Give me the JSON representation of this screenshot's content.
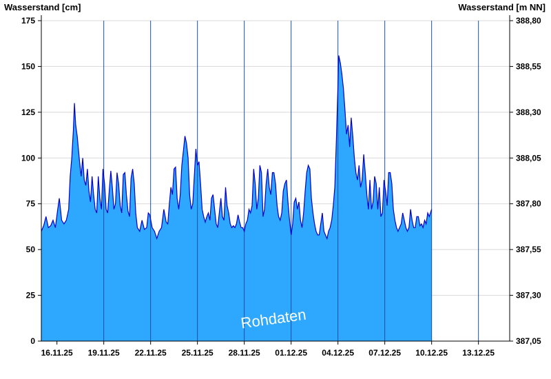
{
  "chart_data": {
    "type": "area",
    "title": "",
    "ylabel_left": "Wasserstand [cm]",
    "ylabel_right": "Wasserstand [m NN]",
    "watermark": "Rohdaten",
    "x_start": "15.11.25",
    "x_end": "15.12.25",
    "ylim_left": [
      0,
      175
    ],
    "ylim_right": [
      387.05,
      388.8
    ],
    "yticks_left": [
      "0",
      "25",
      "50",
      "75",
      "100",
      "125",
      "150",
      "175"
    ],
    "yticks_right": [
      "387,05",
      "387,30",
      "387,55",
      "387,80",
      "388,05",
      "388,30",
      "388,55",
      "388,80"
    ],
    "xticks": [
      "16.11.25",
      "19.11.25",
      "22.11.25",
      "25.11.25",
      "28.11.25",
      "01.12.25",
      "04.12.25",
      "07.12.25",
      "10.12.25",
      "13.12.25"
    ],
    "grid": "horizontal",
    "fill_color": "#2ea8ff",
    "line_color": "#0000cc",
    "series": [
      {
        "points": [
          [
            0.0,
            60
          ],
          [
            0.15,
            63
          ],
          [
            0.3,
            68
          ],
          [
            0.45,
            62
          ],
          [
            0.6,
            63
          ],
          [
            0.75,
            66
          ],
          [
            0.9,
            62
          ],
          [
            1.05,
            72
          ],
          [
            1.15,
            78
          ],
          [
            1.3,
            66
          ],
          [
            1.45,
            64
          ],
          [
            1.6,
            66
          ],
          [
            1.75,
            72
          ],
          [
            1.85,
            90
          ],
          [
            1.95,
            100
          ],
          [
            2.05,
            115
          ],
          [
            2.12,
            130
          ],
          [
            2.2,
            118
          ],
          [
            2.3,
            112
          ],
          [
            2.45,
            98
          ],
          [
            2.55,
            90
          ],
          [
            2.65,
            100
          ],
          [
            2.75,
            88
          ],
          [
            2.85,
            85
          ],
          [
            2.95,
            94
          ],
          [
            3.05,
            82
          ],
          [
            3.15,
            76
          ],
          [
            3.25,
            90
          ],
          [
            3.35,
            80
          ],
          [
            3.45,
            72
          ],
          [
            3.55,
            70
          ],
          [
            3.65,
            90
          ],
          [
            3.75,
            78
          ],
          [
            3.85,
            72
          ],
          [
            3.95,
            94
          ],
          [
            4.05,
            86
          ],
          [
            4.15,
            72
          ],
          [
            4.25,
            70
          ],
          [
            4.35,
            82
          ],
          [
            4.45,
            93
          ],
          [
            4.55,
            84
          ],
          [
            4.65,
            72
          ],
          [
            4.75,
            75
          ],
          [
            4.85,
            92
          ],
          [
            4.95,
            86
          ],
          [
            5.05,
            74
          ],
          [
            5.15,
            70
          ],
          [
            5.25,
            91
          ],
          [
            5.35,
            92
          ],
          [
            5.45,
            80
          ],
          [
            5.55,
            71
          ],
          [
            5.65,
            68
          ],
          [
            5.75,
            89
          ],
          [
            5.85,
            94
          ],
          [
            5.95,
            86
          ],
          [
            6.05,
            70
          ],
          [
            6.15,
            62
          ],
          [
            6.3,
            60
          ],
          [
            6.45,
            66
          ],
          [
            6.6,
            61
          ],
          [
            6.75,
            62
          ],
          [
            6.85,
            70
          ],
          [
            6.95,
            69
          ],
          [
            7.1,
            62
          ],
          [
            7.25,
            60
          ],
          [
            7.4,
            56
          ],
          [
            7.55,
            60
          ],
          [
            7.7,
            62
          ],
          [
            7.85,
            72
          ],
          [
            8.0,
            65
          ],
          [
            8.1,
            64
          ],
          [
            8.2,
            75
          ],
          [
            8.3,
            84
          ],
          [
            8.4,
            80
          ],
          [
            8.5,
            94
          ],
          [
            8.6,
            95
          ],
          [
            8.7,
            78
          ],
          [
            8.8,
            72
          ],
          [
            8.9,
            80
          ],
          [
            9.0,
            96
          ],
          [
            9.1,
            104
          ],
          [
            9.2,
            112
          ],
          [
            9.3,
            108
          ],
          [
            9.4,
            100
          ],
          [
            9.5,
            80
          ],
          [
            9.6,
            72
          ],
          [
            9.7,
            75
          ],
          [
            9.8,
            90
          ],
          [
            9.9,
            105
          ],
          [
            10.0,
            96
          ],
          [
            10.1,
            98
          ],
          [
            10.2,
            86
          ],
          [
            10.3,
            72
          ],
          [
            10.4,
            68
          ],
          [
            10.5,
            65
          ],
          [
            10.6,
            68
          ],
          [
            10.7,
            70
          ],
          [
            10.8,
            66
          ],
          [
            10.9,
            78
          ],
          [
            11.0,
            80
          ],
          [
            11.1,
            72
          ],
          [
            11.2,
            64
          ],
          [
            11.3,
            62
          ],
          [
            11.4,
            70
          ],
          [
            11.5,
            78
          ],
          [
            11.6,
            68
          ],
          [
            11.7,
            66
          ],
          [
            11.8,
            84
          ],
          [
            11.9,
            74
          ],
          [
            12.0,
            70
          ],
          [
            12.1,
            64
          ],
          [
            12.2,
            62
          ],
          [
            12.3,
            63
          ],
          [
            12.4,
            62
          ],
          [
            12.5,
            64
          ],
          [
            12.6,
            69
          ],
          [
            12.7,
            65
          ],
          [
            12.8,
            62
          ],
          [
            12.9,
            62
          ],
          [
            13.0,
            60
          ],
          [
            13.1,
            64
          ],
          [
            13.2,
            66
          ],
          [
            13.3,
            72
          ],
          [
            13.4,
            70
          ],
          [
            13.5,
            74
          ],
          [
            13.6,
            94
          ],
          [
            13.7,
            86
          ],
          [
            13.8,
            72
          ],
          [
            13.9,
            78
          ],
          [
            14.0,
            96
          ],
          [
            14.1,
            92
          ],
          [
            14.2,
            68
          ],
          [
            14.3,
            72
          ],
          [
            14.4,
            86
          ],
          [
            14.5,
            94
          ],
          [
            14.6,
            84
          ],
          [
            14.7,
            80
          ],
          [
            14.8,
            92
          ],
          [
            14.9,
            92
          ],
          [
            15.0,
            86
          ],
          [
            15.1,
            74
          ],
          [
            15.2,
            68
          ],
          [
            15.3,
            66
          ],
          [
            15.4,
            70
          ],
          [
            15.5,
            82
          ],
          [
            15.6,
            86
          ],
          [
            15.7,
            88
          ],
          [
            15.8,
            76
          ],
          [
            15.9,
            66
          ],
          [
            16.0,
            58
          ],
          [
            16.1,
            64
          ],
          [
            16.2,
            76
          ],
          [
            16.3,
            78
          ],
          [
            16.4,
            72
          ],
          [
            16.5,
            76
          ],
          [
            16.6,
            66
          ],
          [
            16.7,
            62
          ],
          [
            16.8,
            70
          ],
          [
            16.9,
            82
          ],
          [
            17.0,
            92
          ],
          [
            17.1,
            96
          ],
          [
            17.2,
            94
          ],
          [
            17.3,
            78
          ],
          [
            17.4,
            70
          ],
          [
            17.5,
            64
          ],
          [
            17.6,
            60
          ],
          [
            17.7,
            58
          ],
          [
            17.8,
            58
          ],
          [
            17.9,
            64
          ],
          [
            18.0,
            70
          ],
          [
            18.1,
            60
          ],
          [
            18.2,
            58
          ],
          [
            18.3,
            56
          ],
          [
            18.4,
            60
          ],
          [
            18.5,
            62
          ],
          [
            18.6,
            66
          ],
          [
            18.7,
            74
          ],
          [
            18.8,
            84
          ],
          [
            18.9,
            110
          ],
          [
            19.0,
            140
          ],
          [
            19.05,
            156
          ],
          [
            19.15,
            152
          ],
          [
            19.25,
            146
          ],
          [
            19.35,
            138
          ],
          [
            19.45,
            126
          ],
          [
            19.55,
            113
          ],
          [
            19.65,
            118
          ],
          [
            19.75,
            106
          ],
          [
            19.85,
            122
          ],
          [
            19.95,
            112
          ],
          [
            20.05,
            100
          ],
          [
            20.15,
            92
          ],
          [
            20.25,
            88
          ],
          [
            20.35,
            96
          ],
          [
            20.45,
            84
          ],
          [
            20.55,
            88
          ],
          [
            20.65,
            102
          ],
          [
            20.75,
            92
          ],
          [
            20.85,
            80
          ],
          [
            20.95,
            72
          ],
          [
            21.05,
            88
          ],
          [
            21.15,
            72
          ],
          [
            21.25,
            76
          ],
          [
            21.35,
            90
          ],
          [
            21.45,
            86
          ],
          [
            21.55,
            72
          ],
          [
            21.65,
            84
          ],
          [
            21.75,
            68
          ],
          [
            21.85,
            70
          ],
          [
            21.95,
            88
          ],
          [
            22.05,
            82
          ],
          [
            22.15,
            74
          ],
          [
            22.25,
            92
          ],
          [
            22.35,
            92
          ],
          [
            22.45,
            86
          ],
          [
            22.55,
            72
          ],
          [
            22.65,
            66
          ],
          [
            22.75,
            62
          ],
          [
            22.85,
            60
          ],
          [
            22.95,
            62
          ],
          [
            23.05,
            64
          ],
          [
            23.15,
            70
          ],
          [
            23.25,
            66
          ],
          [
            23.35,
            62
          ],
          [
            23.45,
            60
          ],
          [
            23.55,
            62
          ],
          [
            23.65,
            72
          ],
          [
            23.75,
            66
          ],
          [
            23.85,
            62
          ],
          [
            23.95,
            62
          ],
          [
            24.05,
            68
          ],
          [
            24.15,
            68
          ],
          [
            24.25,
            63
          ],
          [
            24.35,
            64
          ],
          [
            24.45,
            62
          ],
          [
            24.55,
            66
          ],
          [
            24.65,
            64
          ],
          [
            24.75,
            70
          ],
          [
            24.85,
            68
          ],
          [
            25.0,
            72
          ]
        ]
      }
    ]
  }
}
